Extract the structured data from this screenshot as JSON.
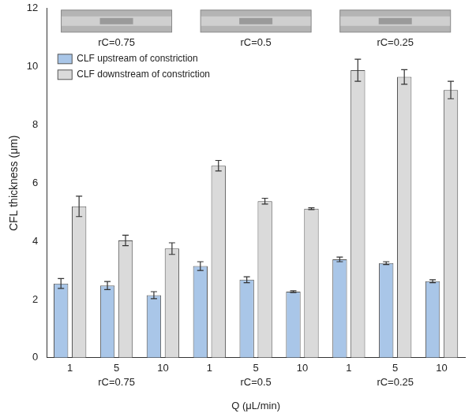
{
  "chart_data": {
    "type": "bar",
    "x_label": "Q (μL/min)",
    "y_label": "CFL thickness (μm)",
    "groups": [
      {
        "name": "rC=0.75",
        "categories": [
          "1",
          "5",
          "10"
        ]
      },
      {
        "name": "rC=0.5",
        "categories": [
          "1",
          "5",
          "10"
        ]
      },
      {
        "name": "rC=0.25",
        "categories": [
          "1",
          "5",
          "10"
        ]
      }
    ],
    "image_labels": [
      "rC=0.75",
      "rC=0.5",
      "rC=0.25"
    ],
    "series": [
      {
        "name": "CLF upstream of constriction",
        "color": "#a9c6e8",
        "values": [
          2.55,
          2.48,
          2.15,
          3.15,
          2.68,
          2.27,
          3.38,
          3.25,
          2.63
        ],
        "errors": [
          0.17,
          0.14,
          0.12,
          0.15,
          0.1,
          0.03,
          0.08,
          0.05,
          0.05
        ]
      },
      {
        "name": "CLF downstream of constriction",
        "color": "#dadada",
        "values": [
          5.2,
          4.03,
          3.75,
          6.6,
          5.38,
          5.12,
          9.88,
          9.65,
          9.2
        ],
        "errors": [
          0.35,
          0.18,
          0.2,
          0.18,
          0.1,
          0.03,
          0.38,
          0.25,
          0.3
        ]
      }
    ],
    "ylim": [
      0,
      12
    ],
    "yticks": [
      0,
      2,
      4,
      6,
      8,
      10,
      12
    ],
    "grid": false,
    "legend": "upper left"
  }
}
